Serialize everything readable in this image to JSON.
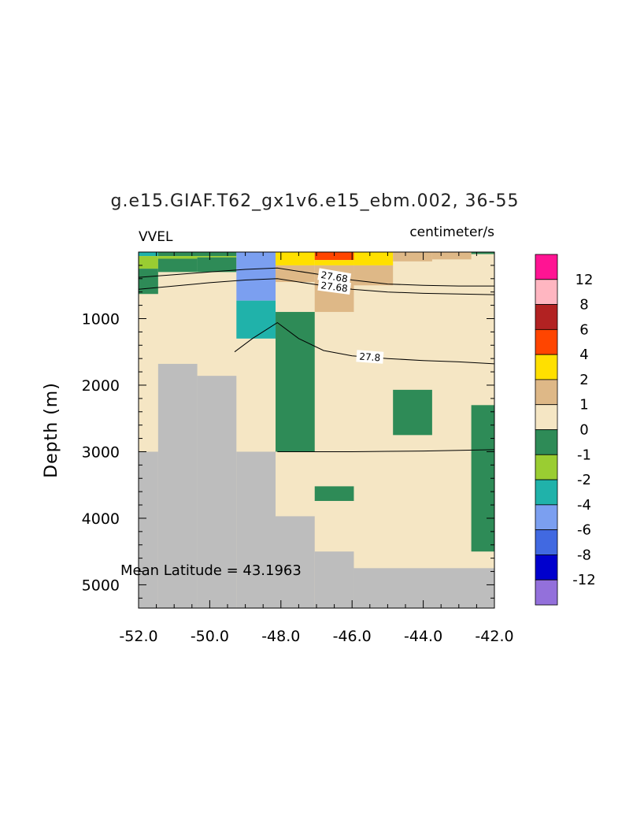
{
  "chart_data": {
    "type": "heatmap",
    "title": "g.e15.GIAF.T62_gx1v6.e15_ebm.002, 36-55",
    "left_label": "VVEL",
    "units": "centimeter/s",
    "ylabel": "Depth (m)",
    "xlabel": "",
    "xlim": [
      -52,
      -42
    ],
    "ylim": [
      5350,
      0
    ],
    "x_ticks": [
      "-52.0",
      "-50.0",
      "-48.0",
      "-46.0",
      "-44.0",
      "-42.0"
    ],
    "x_tick_values": [
      -52,
      -50,
      -48,
      -46,
      -44,
      -42
    ],
    "y_ticks": [
      "1000",
      "2000",
      "3000",
      "4000",
      "5000"
    ],
    "y_tick_values": [
      1000,
      2000,
      3000,
      4000,
      5000
    ],
    "annotation": "Mean Latitude = 43.1963",
    "colorbar": {
      "labels": [
        "12",
        "8",
        "6",
        "4",
        "2",
        "1",
        "0",
        "-1",
        "-2",
        "-4",
        "-6",
        "-8",
        "-12"
      ],
      "colors_top_to_bottom": [
        "#ff1493",
        "#ffb6c1",
        "#b22222",
        "#ff4500",
        "#ffe000",
        "#deb887",
        "#f5e6c4",
        "#2e8b57",
        "#9acd32",
        "#20b2aa",
        "#7b9ff0",
        "#4169e1",
        "#0000cd",
        "#9370db"
      ]
    },
    "colors": {
      "land": "#bdbdbd",
      "background": "#f5e6c4"
    },
    "cells": [
      {
        "x0": -52.0,
        "x1": -51.45,
        "d0": 0,
        "d1": 60,
        "c": "#20b2aa"
      },
      {
        "x0": -51.45,
        "x1": -49.25,
        "d0": 0,
        "d1": 60,
        "c": "#2e8b57"
      },
      {
        "x0": -52.0,
        "x1": -51.45,
        "d0": 60,
        "d1": 250,
        "c": "#9acd32"
      },
      {
        "x0": -51.45,
        "x1": -50.35,
        "d0": 60,
        "d1": 100,
        "c": "#9acd32"
      },
      {
        "x0": -50.35,
        "x1": -49.25,
        "d0": 60,
        "d1": 80,
        "c": "#9acd32"
      },
      {
        "x0": -51.45,
        "x1": -50.35,
        "d0": 100,
        "d1": 300,
        "c": "#2e8b57"
      },
      {
        "x0": -50.35,
        "x1": -49.25,
        "d0": 80,
        "d1": 300,
        "c": "#2e8b57"
      },
      {
        "x0": -52.0,
        "x1": -51.45,
        "d0": 250,
        "d1": 630,
        "c": "#2e8b57"
      },
      {
        "x0": -49.25,
        "x1": -48.15,
        "d0": 0,
        "d1": 730,
        "c": "#7b9ff0"
      },
      {
        "x0": -49.25,
        "x1": -48.15,
        "d0": 730,
        "d1": 1300,
        "c": "#20b2aa"
      },
      {
        "x0": -48.15,
        "x1": -47.05,
        "d0": 0,
        "d1": 200,
        "c": "#ffe000"
      },
      {
        "x0": -47.05,
        "x1": -45.95,
        "d0": 0,
        "d1": 120,
        "c": "#ff4500"
      },
      {
        "x0": -47.05,
        "x1": -45.95,
        "d0": 120,
        "d1": 200,
        "c": "#ffe000"
      },
      {
        "x0": -45.95,
        "x1": -44.85,
        "d0": 0,
        "d1": 200,
        "c": "#ffe000"
      },
      {
        "x0": -48.15,
        "x1": -47.05,
        "d0": 200,
        "d1": 450,
        "c": "#deb887"
      },
      {
        "x0": -47.05,
        "x1": -45.95,
        "d0": 200,
        "d1": 900,
        "c": "#deb887"
      },
      {
        "x0": -45.95,
        "x1": -44.85,
        "d0": 200,
        "d1": 500,
        "c": "#deb887"
      },
      {
        "x0": -44.85,
        "x1": -43.75,
        "d0": 0,
        "d1": 140,
        "c": "#deb887"
      },
      {
        "x0": -43.75,
        "x1": -42.65,
        "d0": 0,
        "d1": 110,
        "c": "#deb887"
      },
      {
        "x0": -48.15,
        "x1": -47.05,
        "d0": 900,
        "d1": 3000,
        "c": "#2e8b57"
      },
      {
        "x0": -44.85,
        "x1": -43.75,
        "d0": 2070,
        "d1": 2750,
        "c": "#2e8b57"
      },
      {
        "x0": -47.05,
        "x1": -45.95,
        "d0": 3520,
        "d1": 3740,
        "c": "#2e8b57"
      },
      {
        "x0": -42.65,
        "x1": -42.0,
        "d0": 2300,
        "d1": 4500,
        "c": "#2e8b57"
      },
      {
        "x0": -42.65,
        "x1": -42.0,
        "d0": 0,
        "d1": 30,
        "c": "#2e8b57"
      },
      {
        "x0": -52.0,
        "x1": -51.45,
        "d0": 3000,
        "d1": 5350,
        "c": "#bdbdbd"
      },
      {
        "x0": -51.45,
        "x1": -50.35,
        "d0": 1680,
        "d1": 5350,
        "c": "#bdbdbd"
      },
      {
        "x0": -50.35,
        "x1": -49.25,
        "d0": 1860,
        "d1": 5350,
        "c": "#bdbdbd"
      },
      {
        "x0": -49.25,
        "x1": -48.15,
        "d0": 3000,
        "d1": 5350,
        "c": "#bdbdbd"
      },
      {
        "x0": -48.15,
        "x1": -47.05,
        "d0": 3970,
        "d1": 5350,
        "c": "#bdbdbd"
      },
      {
        "x0": -47.05,
        "x1": -45.95,
        "d0": 4500,
        "d1": 5350,
        "c": "#bdbdbd"
      },
      {
        "x0": -45.95,
        "x1": -42.0,
        "d0": 4750,
        "d1": 5350,
        "c": "#bdbdbd"
      }
    ],
    "contours": [
      {
        "label": "27.68",
        "points": [
          [
            -52.0,
            560
          ],
          [
            -51.0,
            510
          ],
          [
            -50.0,
            460
          ],
          [
            -49.0,
            420
          ],
          [
            -48.1,
            400
          ],
          [
            -47.0,
            490
          ],
          [
            -46.0,
            560
          ],
          [
            -45.0,
            600
          ],
          [
            -44.0,
            620
          ],
          [
            -43.0,
            630
          ],
          [
            -42.0,
            640
          ]
        ]
      },
      {
        "label": "27.68",
        "points": [
          [
            -52.0,
            380
          ],
          [
            -51.0,
            340
          ],
          [
            -50.0,
            300
          ],
          [
            -49.0,
            260
          ],
          [
            -48.1,
            240
          ],
          [
            -47.0,
            330
          ],
          [
            -46.0,
            420
          ],
          [
            -45.0,
            480
          ],
          [
            -44.0,
            500
          ],
          [
            -43.0,
            510
          ],
          [
            -42.0,
            510
          ]
        ]
      },
      {
        "label": "27.8",
        "points": [
          [
            -49.3,
            1500
          ],
          [
            -48.8,
            1300
          ],
          [
            -48.1,
            1060
          ],
          [
            -47.5,
            1300
          ],
          [
            -46.8,
            1480
          ],
          [
            -46.0,
            1560
          ],
          [
            -45.0,
            1600
          ],
          [
            -44.0,
            1630
          ],
          [
            -43.0,
            1650
          ],
          [
            -42.0,
            1680
          ]
        ]
      },
      {
        "label": "",
        "points": [
          [
            -48.1,
            3000
          ],
          [
            -47.0,
            3000
          ],
          [
            -46.0,
            3000
          ],
          [
            -45.0,
            2995
          ],
          [
            -44.0,
            2990
          ],
          [
            -43.0,
            2980
          ],
          [
            -42.0,
            2970
          ]
        ]
      }
    ]
  }
}
